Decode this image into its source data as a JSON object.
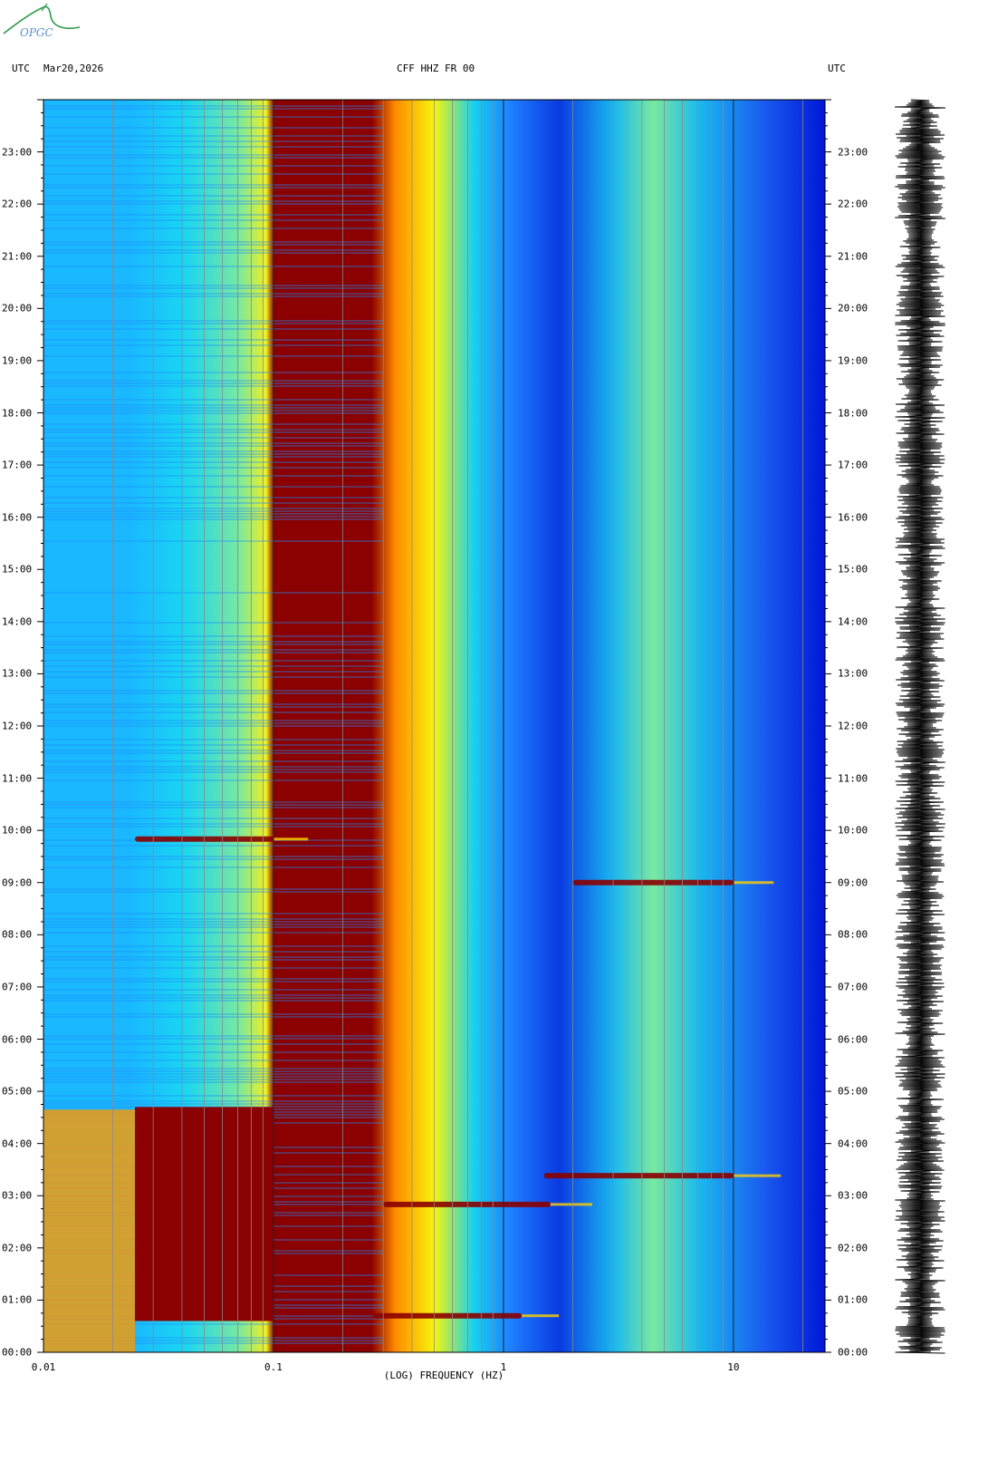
{
  "header": {
    "left_tz": "UTC",
    "date": "Mar20,2026",
    "station": "CFF HHZ FR 00",
    "right_tz": "UTC"
  },
  "logo": {
    "text": "OPGC",
    "color": "#2f9a4c"
  },
  "chart_data": {
    "type": "heatmap",
    "title": "CFF HHZ FR 00",
    "xlabel": "(LOG) FREQUENCY (HZ)",
    "x_scale": "log",
    "xlim": [
      0.01,
      25
    ],
    "x_ticks": [
      {
        "value": 0.01,
        "label": "0.01"
      },
      {
        "value": 0.1,
        "label": "0.1"
      },
      {
        "value": 1,
        "label": "1"
      },
      {
        "value": 10,
        "label": "10"
      }
    ],
    "ylim_hours": [
      0,
      24
    ],
    "y_ticks": [
      "00:00",
      "01:00",
      "02:00",
      "03:00",
      "04:00",
      "05:00",
      "06:00",
      "07:00",
      "08:00",
      "09:00",
      "10:00",
      "11:00",
      "12:00",
      "13:00",
      "14:00",
      "15:00",
      "16:00",
      "17:00",
      "18:00",
      "19:00",
      "20:00",
      "21:00",
      "22:00",
      "23:00"
    ],
    "colormap": [
      "#0010d8",
      "#1e8cff",
      "#19d2f0",
      "#f5f50c",
      "#ff8a00",
      "#e81a00",
      "#8b0000"
    ],
    "events": [
      {
        "time": "00:42",
        "freq_range": [
          0.27,
          1.2
        ]
      },
      {
        "time": "02:50",
        "freq_range": [
          0.3,
          1.6
        ]
      },
      {
        "time": "03:23",
        "freq_range": [
          1.5,
          10
        ]
      },
      {
        "time": "09:00",
        "freq_range": [
          2,
          10
        ]
      },
      {
        "time": "09:50",
        "freq_range": [
          0.025,
          0.1
        ]
      }
    ],
    "grid": true
  }
}
